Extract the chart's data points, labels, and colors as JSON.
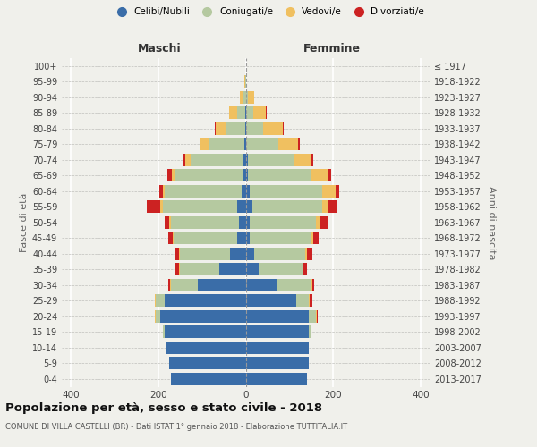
{
  "age_groups": [
    "0-4",
    "5-9",
    "10-14",
    "15-19",
    "20-24",
    "25-29",
    "30-34",
    "35-39",
    "40-44",
    "45-49",
    "50-54",
    "55-59",
    "60-64",
    "65-69",
    "70-74",
    "75-79",
    "80-84",
    "85-89",
    "90-94",
    "95-99",
    "100+"
  ],
  "birth_years": [
    "2013-2017",
    "2008-2012",
    "2003-2007",
    "1998-2002",
    "1993-1997",
    "1988-1992",
    "1983-1987",
    "1978-1982",
    "1973-1977",
    "1968-1972",
    "1963-1967",
    "1958-1962",
    "1953-1957",
    "1948-1952",
    "1943-1947",
    "1938-1942",
    "1933-1937",
    "1928-1932",
    "1923-1927",
    "1918-1922",
    "≤ 1917"
  ],
  "maschi": {
    "celibi": [
      170,
      175,
      180,
      185,
      195,
      185,
      110,
      60,
      35,
      20,
      15,
      20,
      10,
      8,
      5,
      4,
      2,
      2,
      0,
      0,
      0
    ],
    "coniugati": [
      0,
      0,
      0,
      5,
      10,
      20,
      60,
      90,
      115,
      145,
      155,
      170,
      175,
      155,
      120,
      80,
      45,
      18,
      5,
      2,
      0
    ],
    "vedovi": [
      0,
      0,
      0,
      0,
      2,
      2,
      2,
      2,
      2,
      2,
      5,
      5,
      5,
      5,
      12,
      20,
      22,
      18,
      8,
      2,
      0
    ],
    "divorziati": [
      0,
      0,
      0,
      0,
      0,
      0,
      5,
      8,
      10,
      10,
      10,
      30,
      8,
      10,
      8,
      2,
      2,
      0,
      0,
      0,
      0
    ]
  },
  "femmine": {
    "nubili": [
      140,
      145,
      145,
      145,
      145,
      115,
      70,
      30,
      20,
      10,
      10,
      15,
      10,
      5,
      5,
      2,
      2,
      2,
      0,
      0,
      0
    ],
    "coniugate": [
      0,
      0,
      0,
      5,
      15,
      30,
      80,
      100,
      115,
      140,
      150,
      160,
      165,
      145,
      105,
      72,
      38,
      15,
      5,
      0,
      0
    ],
    "vedove": [
      0,
      0,
      0,
      0,
      2,
      2,
      2,
      2,
      5,
      5,
      10,
      15,
      30,
      40,
      40,
      45,
      45,
      30,
      15,
      2,
      0
    ],
    "divorziate": [
      0,
      0,
      0,
      0,
      2,
      5,
      5,
      8,
      12,
      12,
      20,
      20,
      8,
      5,
      5,
      5,
      2,
      2,
      0,
      0,
      0
    ]
  },
  "colors": {
    "celibi": "#3a6da8",
    "coniugati": "#b5c9a0",
    "vedovi": "#f0c060",
    "divorziati": "#cc2222"
  },
  "xlim": 420,
  "title": "Popolazione per età, sesso e stato civile - 2018",
  "subtitle": "COMUNE DI VILLA CASTELLI (BR) - Dati ISTAT 1° gennaio 2018 - Elaborazione TUTTITALIA.IT",
  "ylabel_left": "Fasce di età",
  "ylabel_right": "Anni di nascita",
  "xlabel_maschi": "Maschi",
  "xlabel_femmine": "Femmine",
  "bg_color": "#f0f0eb",
  "legend_labels": [
    "Celibi/Nubili",
    "Coniugati/e",
    "Vedovi/e",
    "Divorziati/e"
  ]
}
